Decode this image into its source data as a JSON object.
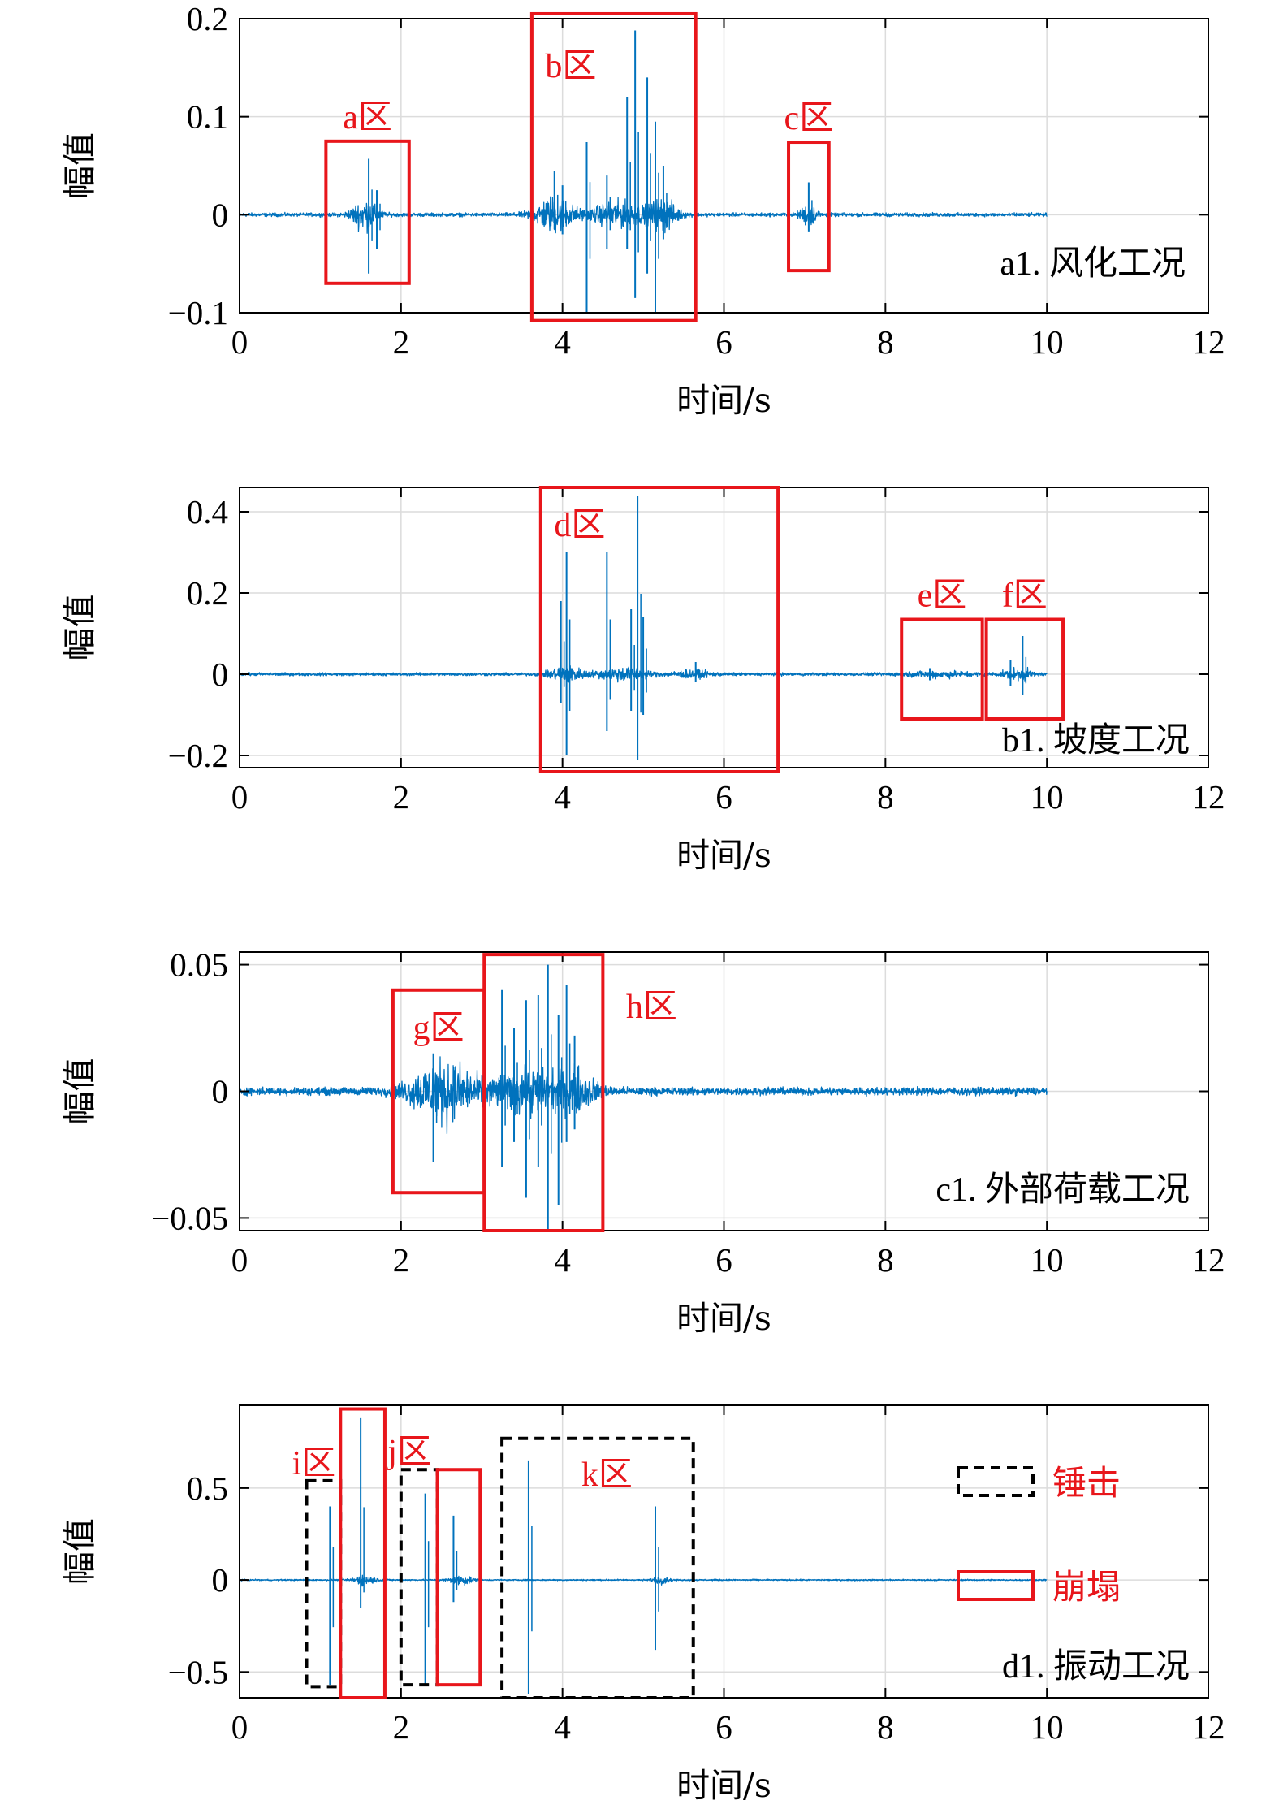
{
  "colors": {
    "signal": "#0072bd",
    "highlight": "#e8161b",
    "hammer": "#000000",
    "grid": "#dcdcdc"
  },
  "chart_data": [
    {
      "type": "line",
      "label": "a1. 风化工况",
      "xlabel": "时间/s",
      "ylabel": "幅值",
      "xlim": [
        0,
        12
      ],
      "ylim": [
        -0.1,
        0.2
      ],
      "xticks": [
        0,
        2,
        4,
        6,
        8,
        10,
        12
      ],
      "yticks": [
        -0.1,
        0,
        0.1,
        0.2
      ],
      "ytick_labels": [
        "−0.1",
        "0",
        "0.1",
        "0.2"
      ],
      "grid": true,
      "signal_range": [
        0,
        10
      ],
      "noise": 0.0015,
      "bursts": [
        {
          "t": 1.55,
          "w": 0.22,
          "a": 0.012
        },
        {
          "t": 3.9,
          "w": 0.35,
          "a": 0.014
        },
        {
          "t": 4.7,
          "w": 0.5,
          "a": 0.01
        },
        {
          "t": 5.25,
          "w": 0.25,
          "a": 0.012
        },
        {
          "t": 7.05,
          "w": 0.15,
          "a": 0.008
        }
      ],
      "spikes": [
        {
          "t": 1.6,
          "up": 0.057,
          "down": -0.06
        },
        {
          "t": 1.7,
          "up": 0.025,
          "down": -0.035
        },
        {
          "t": 3.9,
          "up": 0.045,
          "down": -0.015
        },
        {
          "t": 4.0,
          "up": 0.03,
          "down": -0.02
        },
        {
          "t": 4.3,
          "up": 0.074,
          "down": -0.1
        },
        {
          "t": 4.55,
          "up": 0.04,
          "down": -0.035
        },
        {
          "t": 4.8,
          "up": 0.12,
          "down": -0.035
        },
        {
          "t": 4.9,
          "up": 0.188,
          "down": -0.085
        },
        {
          "t": 5.15,
          "up": 0.095,
          "down": -0.1
        },
        {
          "t": 5.05,
          "up": 0.14,
          "down": -0.06
        },
        {
          "t": 5.25,
          "up": 0.05,
          "down": -0.025
        },
        {
          "t": 7.05,
          "up": 0.033,
          "down": -0.017
        }
      ],
      "boxes": [
        {
          "label": "a区",
          "x": [
            1.07,
            2.1
          ],
          "y": [
            -0.07,
            0.075
          ],
          "style": "solid"
        },
        {
          "label": "b区",
          "x": [
            3.62,
            5.65
          ],
          "y": [
            -0.108,
            0.205
          ],
          "style": "solid"
        },
        {
          "label": "c区",
          "x": [
            6.8,
            7.3
          ],
          "y": [
            -0.057,
            0.074
          ],
          "style": "solid"
        }
      ]
    },
    {
      "type": "line",
      "label": "b1. 坡度工况",
      "xlabel": "时间/s",
      "ylabel": "幅值",
      "xlim": [
        0,
        12
      ],
      "ylim": [
        -0.23,
        0.46
      ],
      "xticks": [
        0,
        2,
        4,
        6,
        8,
        10,
        12
      ],
      "yticks": [
        -0.2,
        0,
        0.2,
        0.4
      ],
      "ytick_labels": [
        "−0.2",
        "0",
        "0.2",
        "0.4"
      ],
      "grid": true,
      "signal_range": [
        0,
        10
      ],
      "noise": 0.003,
      "bursts": [
        {
          "t": 4.05,
          "w": 0.3,
          "a": 0.015
        },
        {
          "t": 4.75,
          "w": 0.45,
          "a": 0.012
        },
        {
          "t": 5.6,
          "w": 0.35,
          "a": 0.006
        },
        {
          "t": 8.7,
          "w": 0.6,
          "a": 0.005
        },
        {
          "t": 9.65,
          "w": 0.25,
          "a": 0.01
        }
      ],
      "spikes": [
        {
          "t": 3.98,
          "up": 0.18,
          "down": -0.07
        },
        {
          "t": 4.05,
          "up": 0.3,
          "down": -0.2
        },
        {
          "t": 4.55,
          "up": 0.3,
          "down": -0.14
        },
        {
          "t": 4.85,
          "up": 0.16,
          "down": -0.09
        },
        {
          "t": 4.93,
          "up": 0.44,
          "down": -0.21
        },
        {
          "t": 5.0,
          "up": 0.14,
          "down": -0.1
        },
        {
          "t": 5.65,
          "up": 0.03,
          "down": -0.02
        },
        {
          "t": 8.55,
          "up": 0.015,
          "down": -0.015
        },
        {
          "t": 9.7,
          "up": 0.094,
          "down": -0.05
        },
        {
          "t": 9.55,
          "up": 0.035,
          "down": -0.03
        }
      ],
      "boxes": [
        {
          "label": "d区",
          "x": [
            3.73,
            6.67
          ],
          "y": [
            -0.24,
            0.46
          ],
          "style": "solid"
        },
        {
          "label": "e区",
          "x": [
            8.2,
            9.2
          ],
          "y": [
            -0.11,
            0.135
          ],
          "style": "solid"
        },
        {
          "label": "f区",
          "x": [
            9.25,
            10.2
          ],
          "y": [
            -0.11,
            0.135
          ],
          "style": "solid"
        }
      ]
    },
    {
      "type": "line",
      "label": "c1. 外部荷载工况",
      "xlabel": "时间/s",
      "ylabel": "幅值",
      "xlim": [
        0,
        12
      ],
      "ylim": [
        -0.055,
        0.055
      ],
      "xticks": [
        0,
        2,
        4,
        6,
        8,
        10,
        12
      ],
      "yticks": [
        -0.05,
        0,
        0.05
      ],
      "ytick_labels": [
        "−0.05",
        "0",
        "0.05"
      ],
      "grid": true,
      "signal_range": [
        0,
        10
      ],
      "noise": 0.0012,
      "bursts": [
        {
          "t": 2.5,
          "w": 0.55,
          "a": 0.009
        },
        {
          "t": 3.6,
          "w": 0.8,
          "a": 0.006
        },
        {
          "t": 4.2,
          "w": 0.3,
          "a": 0.004
        }
      ],
      "spikes": [
        {
          "t": 2.4,
          "up": 0.015,
          "down": -0.028
        },
        {
          "t": 3.25,
          "up": 0.04,
          "down": -0.03
        },
        {
          "t": 3.4,
          "up": 0.025,
          "down": -0.02
        },
        {
          "t": 3.55,
          "up": 0.036,
          "down": -0.042
        },
        {
          "t": 3.7,
          "up": 0.038,
          "down": -0.03
        },
        {
          "t": 3.82,
          "up": 0.05,
          "down": -0.055
        },
        {
          "t": 3.95,
          "up": 0.03,
          "down": -0.045
        },
        {
          "t": 4.05,
          "up": 0.042,
          "down": -0.02
        },
        {
          "t": 4.15,
          "up": 0.022,
          "down": -0.015
        }
      ],
      "boxes": [
        {
          "label": "g区",
          "x": [
            1.9,
            3.03
          ],
          "y": [
            -0.04,
            0.04
          ],
          "style": "solid"
        },
        {
          "label": "h区",
          "x": [
            3.03,
            4.5
          ],
          "y": [
            -0.055,
            0.054
          ],
          "style": "solid"
        }
      ]
    },
    {
      "type": "line",
      "label": "d1. 振动工况",
      "xlabel": "时间/s",
      "ylabel": "幅值",
      "xlim": [
        0,
        12
      ],
      "ylim": [
        -0.64,
        0.95
      ],
      "xticks": [
        0,
        2,
        4,
        6,
        8,
        10,
        12
      ],
      "yticks": [
        -0.5,
        0,
        0.5
      ],
      "ytick_labels": [
        "−0.5",
        "0",
        "0.5"
      ],
      "grid": true,
      "signal_range": [
        0,
        10
      ],
      "noise": 0.003,
      "bursts": [
        {
          "t": 1.55,
          "w": 0.2,
          "a": 0.02
        },
        {
          "t": 2.75,
          "w": 0.2,
          "a": 0.02
        },
        {
          "t": 5.22,
          "w": 0.15,
          "a": 0.015
        }
      ],
      "spikes": [
        {
          "t": 1.12,
          "up": 0.4,
          "down": -0.57
        },
        {
          "t": 1.5,
          "up": 0.88,
          "down": -0.15
        },
        {
          "t": 2.3,
          "up": 0.47,
          "down": -0.57
        },
        {
          "t": 2.65,
          "up": 0.35,
          "down": -0.12
        },
        {
          "t": 3.58,
          "up": 0.65,
          "down": -0.62
        },
        {
          "t": 5.15,
          "up": 0.4,
          "down": -0.38
        }
      ],
      "boxes": [
        {
          "label": "i区",
          "x": [
            0.83,
            1.25
          ],
          "y": [
            -0.58,
            0.54
          ],
          "style": "dashed"
        },
        {
          "label": "",
          "x": [
            1.25,
            1.8
          ],
          "y": [
            -0.64,
            0.93
          ],
          "style": "solid"
        },
        {
          "label": "j区",
          "x": [
            2.0,
            2.45
          ],
          "y": [
            -0.57,
            0.6
          ],
          "style": "dashed"
        },
        {
          "label": "",
          "x": [
            2.45,
            2.98
          ],
          "y": [
            -0.57,
            0.6
          ],
          "style": "solid"
        },
        {
          "label": "k区",
          "x": [
            3.25,
            5.62
          ],
          "y": [
            -0.64,
            0.77
          ],
          "style": "dashed"
        }
      ],
      "legend": {
        "position": "right",
        "items": [
          {
            "label": "锤击",
            "style": "dashed"
          },
          {
            "label": "崩塌",
            "style": "solid"
          }
        ]
      }
    }
  ]
}
